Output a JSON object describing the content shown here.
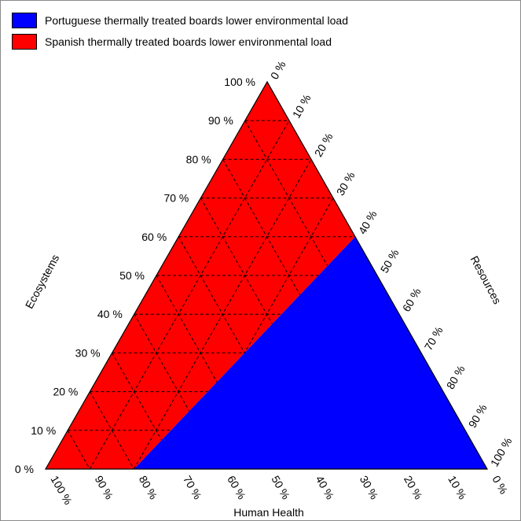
{
  "legend": [
    {
      "label": "Portuguese thermally treated boards lower environmental load",
      "color": "#0000ff"
    },
    {
      "label": "Spanish thermally treated boards lower environmental load",
      "color": "#ff0000"
    }
  ],
  "chart_data": {
    "type": "ternary",
    "axes": {
      "left": {
        "title": "Ecosystems",
        "ticks": [
          "0 %",
          "10 %",
          "20 %",
          "30 %",
          "40 %",
          "50 %",
          "60 %",
          "70 %",
          "80 %",
          "90 %",
          "100 %"
        ]
      },
      "right": {
        "title": "Resources",
        "ticks": [
          "0 %",
          "10 %",
          "20 %",
          "30 %",
          "40 %",
          "50 %",
          "60 %",
          "70 %",
          "80 %",
          "90 %",
          "100 %"
        ]
      },
      "bottom": {
        "title": "Human Health",
        "ticks": [
          "100 %",
          "90 %",
          "80 %",
          "70 %",
          "60 %",
          "50 %",
          "40 %",
          "30 %",
          "20 %",
          "10 %",
          "0 %"
        ]
      }
    },
    "regions": [
      {
        "name": "Portuguese thermally treated boards lower environmental load",
        "color": "#0000ff",
        "vertices": [
          {
            "ecosystems": 0,
            "resources": 20,
            "human_health": 80
          },
          {
            "ecosystems": 0,
            "resources": 100,
            "human_health": 0
          },
          {
            "ecosystems": 60,
            "resources": 40,
            "human_health": 0
          }
        ]
      },
      {
        "name": "Spanish thermally treated boards lower environmental load",
        "color": "#ff0000",
        "vertices": [
          {
            "ecosystems": 0,
            "resources": 0,
            "human_health": 100
          },
          {
            "ecosystems": 0,
            "resources": 20,
            "human_health": 80
          },
          {
            "ecosystems": 60,
            "resources": 40,
            "human_health": 0
          },
          {
            "ecosystems": 100,
            "resources": 0,
            "human_health": 0
          }
        ]
      }
    ],
    "grid": "dashed, 10 % steps, shown in red region"
  }
}
